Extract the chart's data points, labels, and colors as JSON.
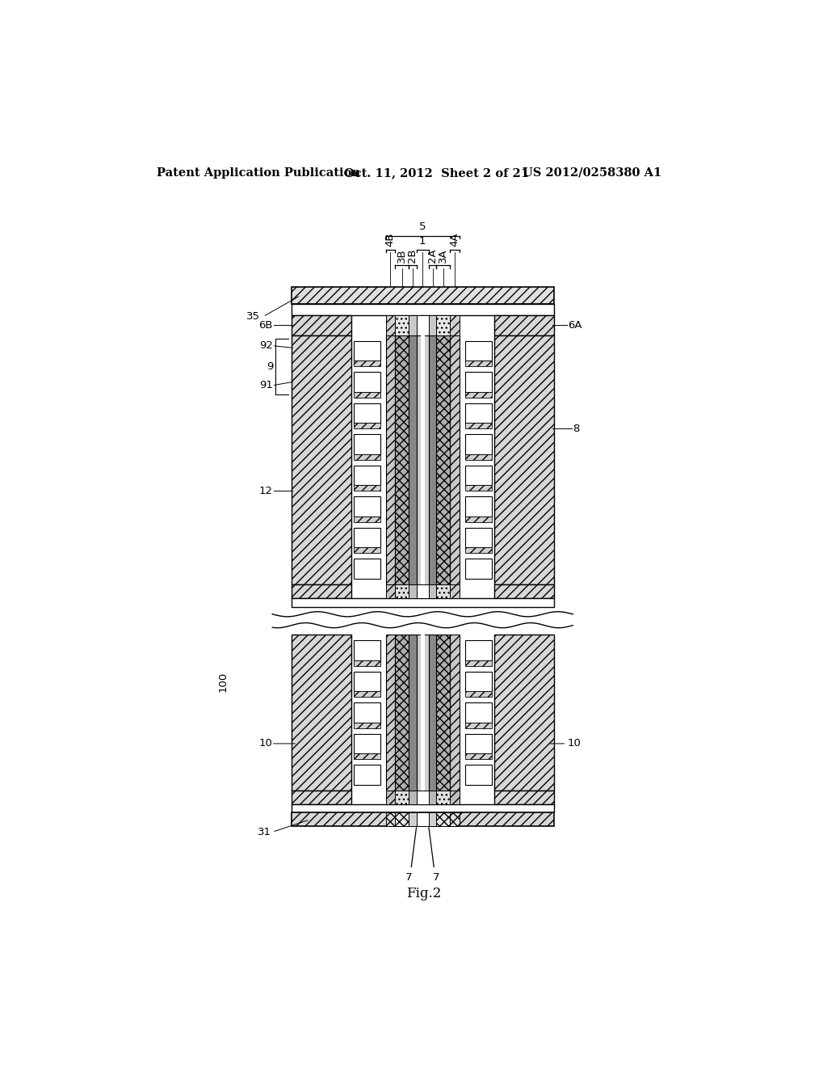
{
  "bg_color": "#ffffff",
  "header_text": "Patent Application Publication",
  "header_date": "Oct. 11, 2012  Sheet 2 of 21",
  "header_patent": "US 2012/0258380 A1",
  "fig_label": "Fig.2"
}
